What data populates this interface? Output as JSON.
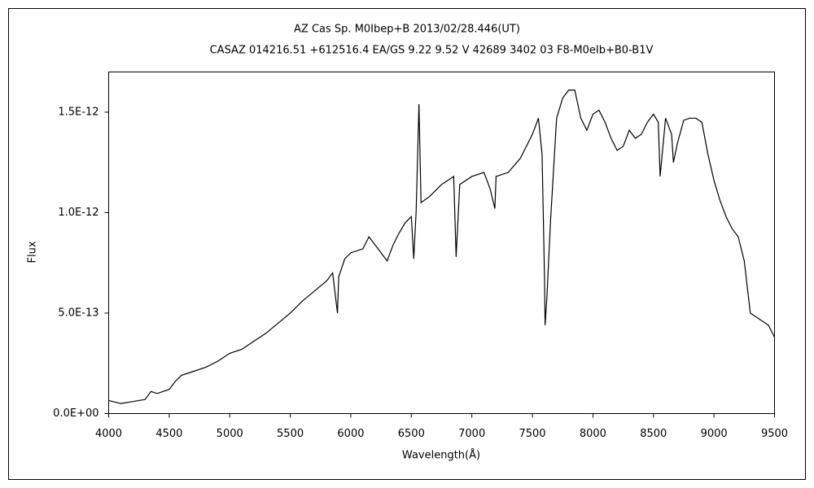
{
  "chart_data": {
    "type": "line",
    "title": "AZ Cas     Sp. M0Ibep+B     2013/02/28.446(UT)",
    "subtitle": "CASAZ 014216.51  +612516.4 EA/GS 9.22 9.52 V 42689 3402 03 F8-M0eIb+B0-B1V",
    "x_label": "Wavelength(Å)",
    "y_label": "Flux",
    "grid": false,
    "xlim": [
      4000,
      9500
    ],
    "xticks": [
      4000,
      4500,
      5000,
      5500,
      6000,
      6500,
      7000,
      7500,
      8000,
      8500,
      9000,
      9500
    ],
    "ylim": [
      0,
      1.7e-12
    ],
    "yticks": [
      {
        "value": 0,
        "label": "0.0E+00"
      },
      {
        "value": 5e-13,
        "label": "5.0E-13"
      },
      {
        "value": 1e-12,
        "label": "1.0E-12"
      },
      {
        "value": 1.5e-12,
        "label": "1.5E-12"
      }
    ],
    "x": [
      4000,
      4100,
      4200,
      4300,
      4350,
      4400,
      4500,
      4550,
      4600,
      4700,
      4800,
      4900,
      5000,
      5100,
      5200,
      5300,
      5400,
      5500,
      5600,
      5700,
      5800,
      5850,
      5890,
      5900,
      5950,
      6000,
      6100,
      6150,
      6200,
      6300,
      6350,
      6400,
      6450,
      6500,
      6520,
      6540,
      6563,
      6580,
      6650,
      6750,
      6850,
      6870,
      6900,
      7000,
      7100,
      7150,
      7190,
      7200,
      7300,
      7400,
      7500,
      7550,
      7580,
      7600,
      7605,
      7620,
      7650,
      7700,
      7750,
      7800,
      7850,
      7900,
      7950,
      8000,
      8050,
      8100,
      8150,
      8200,
      8250,
      8300,
      8350,
      8400,
      8450,
      8500,
      8540,
      8555,
      8600,
      8650,
      8665,
      8700,
      8750,
      8800,
      8850,
      8900,
      8950,
      9000,
      9050,
      9100,
      9150,
      9200,
      9250,
      9300,
      9350,
      9400,
      9450,
      9500
    ],
    "series": [
      {
        "name": "Flux",
        "color": "#000000",
        "values": [
          6.5e-14,
          5e-14,
          6e-14,
          7e-14,
          1.1e-13,
          1e-13,
          1.2e-13,
          1.6e-13,
          1.9e-13,
          2.1e-13,
          2.3e-13,
          2.6e-13,
          3e-13,
          3.2e-13,
          3.6e-13,
          4e-13,
          4.5e-13,
          5e-13,
          5.6e-13,
          6.1e-13,
          6.6e-13,
          7e-13,
          5e-13,
          6.8e-13,
          7.7e-13,
          8e-13,
          8.2e-13,
          8.8e-13,
          8.4e-13,
          7.6e-13,
          8.4e-13,
          9e-13,
          9.5e-13,
          9.8e-13,
          7.7e-13,
          1.01e-12,
          1.54e-12,
          1.05e-12,
          1.08e-12,
          1.14e-12,
          1.18e-12,
          7.8e-13,
          1.14e-12,
          1.18e-12,
          1.2e-12,
          1.12e-12,
          1.02e-12,
          1.18e-12,
          1.2e-12,
          1.27e-12,
          1.39e-12,
          1.47e-12,
          1.29e-12,
          6.8e-13,
          4.4e-13,
          5.8e-13,
          9.6e-13,
          1.47e-12,
          1.57e-12,
          1.61e-12,
          1.61e-12,
          1.47e-12,
          1.41e-12,
          1.49e-12,
          1.51e-12,
          1.45e-12,
          1.37e-12,
          1.31e-12,
          1.33e-12,
          1.41e-12,
          1.37e-12,
          1.39e-12,
          1.45e-12,
          1.49e-12,
          1.45e-12,
          1.18e-12,
          1.47e-12,
          1.39e-12,
          1.25e-12,
          1.35e-12,
          1.46e-12,
          1.47e-12,
          1.47e-12,
          1.45e-12,
          1.29e-12,
          1.16e-12,
          1.06e-12,
          9.8e-13,
          9.2e-13,
          8.8e-13,
          7.6e-13,
          5e-13,
          4.8e-13,
          4.6e-13,
          4.4e-13,
          3.8e-13
        ]
      }
    ]
  }
}
